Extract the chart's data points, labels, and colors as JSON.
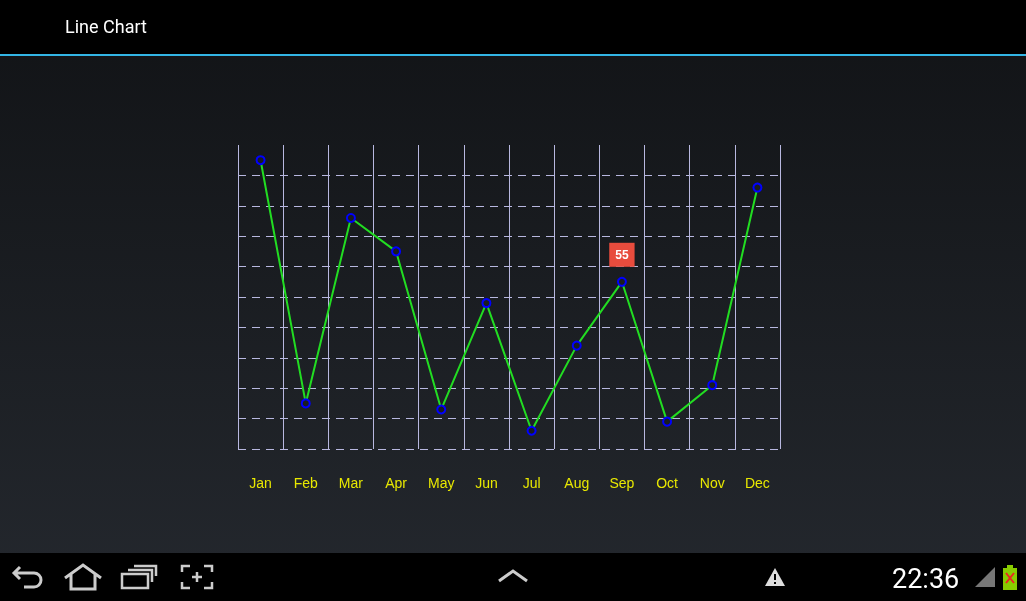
{
  "chart_data": {
    "type": "line",
    "title": "Line Chart",
    "categories": [
      "Jan",
      "Feb",
      "Mar",
      "Apr",
      "May",
      "Jun",
      "Jul",
      "Aug",
      "Sep",
      "Oct",
      "Nov",
      "Dec"
    ],
    "series": [
      {
        "color": "#22dd22",
        "values": [
          95,
          15,
          76,
          65,
          13,
          48,
          6,
          34,
          55,
          9,
          21,
          86
        ],
        "value_labels": [
          null,
          null,
          null,
          null,
          null,
          null,
          null,
          null,
          "55",
          null,
          null,
          null
        ]
      }
    ],
    "ylim": [
      0,
      100
    ],
    "yticks": [
      {
        "value": 0,
        "label": null
      },
      {
        "value": 10,
        "label": null
      },
      {
        "value": 20,
        "label": null
      },
      {
        "value": 30,
        "label": null
      },
      {
        "value": 40,
        "label": null
      },
      {
        "value": 50,
        "label": null
      },
      {
        "value": 60,
        "label": null
      },
      {
        "value": 70,
        "label": null
      },
      {
        "value": 80,
        "label": null
      },
      {
        "value": 90,
        "label": null
      }
    ],
    "marker": "circle",
    "line_style": "solid",
    "grid": true,
    "tick_labels": "x",
    "annotations": [
      "22:36"
    ]
  }
}
